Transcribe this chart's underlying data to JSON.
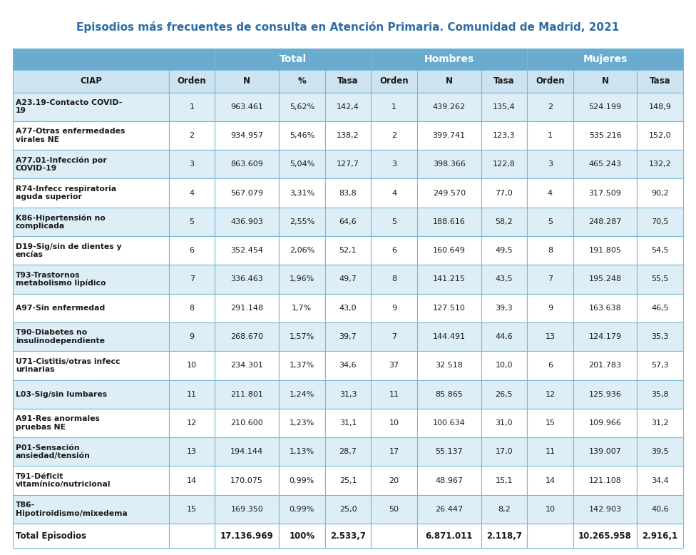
{
  "title": "Episodios más frecuentes de consulta en Atención Primaria. Comunidad de Madrid, 2021",
  "header_bg": "#6aacd0",
  "col_header_bg": "#cde4f0",
  "row_even_bg": "#deeef7",
  "row_odd_bg": "#ffffff",
  "border_color": "#7ab8d4",
  "title_color": "#2e6da4",
  "columns": [
    "CIAP",
    "Orden",
    "N",
    "%",
    "Tasa",
    "Orden",
    "N",
    "Tasa",
    "Orden",
    "N",
    "Tasa"
  ],
  "group_headers": [
    {
      "label": "",
      "cols": [
        0,
        1
      ]
    },
    {
      "label": "Total",
      "cols": [
        2,
        3,
        4
      ]
    },
    {
      "label": "Hombres",
      "cols": [
        5,
        6,
        7
      ]
    },
    {
      "label": "Mujeres",
      "cols": [
        8,
        9,
        10
      ]
    }
  ],
  "rows": [
    [
      "A23.19-Contacto COVID-\n19",
      "1",
      "963.461",
      "5,62%",
      "142,4",
      "1",
      "439.262",
      "135,4",
      "2",
      "524.199",
      "148,9"
    ],
    [
      "A77-Otras enfermedades\nvirales NE",
      "2",
      "934.957",
      "5,46%",
      "138,2",
      "2",
      "399.741",
      "123,3",
      "1",
      "535.216",
      "152,0"
    ],
    [
      "A77.01-Infección por\nCOVID-19",
      "3",
      "863.609",
      "5,04%",
      "127,7",
      "3",
      "398.366",
      "122,8",
      "3",
      "465.243",
      "132,2"
    ],
    [
      "R74-Infecc respiratoria\naguda superior",
      "4",
      "567.079",
      "3,31%",
      "83,8",
      "4",
      "249.570",
      "77,0",
      "4",
      "317.509",
      "90,2"
    ],
    [
      "K86-Hipertensión no\ncomplicada",
      "5",
      "436.903",
      "2,55%",
      "64,6",
      "5",
      "188.616",
      "58,2",
      "5",
      "248.287",
      "70,5"
    ],
    [
      "D19-Sig/sin de dientes y\nencías",
      "6",
      "352.454",
      "2,06%",
      "52,1",
      "6",
      "160.649",
      "49,5",
      "8",
      "191.805",
      "54,5"
    ],
    [
      "T93-Trastornos\nmetabolismo lipídico",
      "7",
      "336.463",
      "1,96%",
      "49,7",
      "8",
      "141.215",
      "43,5",
      "7",
      "195.248",
      "55,5"
    ],
    [
      "A97-Sin enfermedad",
      "8",
      "291.148",
      "1,7%",
      "43,0",
      "9",
      "127.510",
      "39,3",
      "9",
      "163.638",
      "46,5"
    ],
    [
      "T90-Diabetes no\ninsulinodependiente",
      "9",
      "268.670",
      "1,57%",
      "39,7",
      "7",
      "144.491",
      "44,6",
      "13",
      "124.179",
      "35,3"
    ],
    [
      "U71-Cistitis/otras infecc\nurinarias",
      "10",
      "234.301",
      "1,37%",
      "34,6",
      "37",
      "32.518",
      "10,0",
      "6",
      "201.783",
      "57,3"
    ],
    [
      "L03-Sig/sin lumbares",
      "11",
      "211.801",
      "1,24%",
      "31,3",
      "11",
      "85.865",
      "26,5",
      "12",
      "125.936",
      "35,8"
    ],
    [
      "A91-Res anormales\npruebas NE",
      "12",
      "210.600",
      "1,23%",
      "31,1",
      "10",
      "100.634",
      "31,0",
      "15",
      "109.966",
      "31,2"
    ],
    [
      "P01-Sensación\nansiedad/tensión",
      "13",
      "194.144",
      "1,13%",
      "28,7",
      "17",
      "55.137",
      "17,0",
      "11",
      "139.007",
      "39,5"
    ],
    [
      "T91-Déficit\nvitamínico/nutricional",
      "14",
      "170.075",
      "0,99%",
      "25,1",
      "20",
      "48.967",
      "15,1",
      "14",
      "121.108",
      "34,4"
    ],
    [
      "T86-\nHipotiroidismo/mixedema",
      "15",
      "169.350",
      "0,99%",
      "25,0",
      "50",
      "26.447",
      "8,2",
      "10",
      "142.903",
      "40,6"
    ]
  ],
  "total_row": [
    "Total Episodios",
    "",
    "17.136.969",
    "100%",
    "2.533,7",
    "",
    "6.871.011",
    "2.118,7",
    "",
    "10.265.958",
    "2.916,1"
  ],
  "col_widths_rel": [
    2.2,
    0.65,
    0.9,
    0.65,
    0.65,
    0.65,
    0.9,
    0.65,
    0.65,
    0.9,
    0.65
  ]
}
